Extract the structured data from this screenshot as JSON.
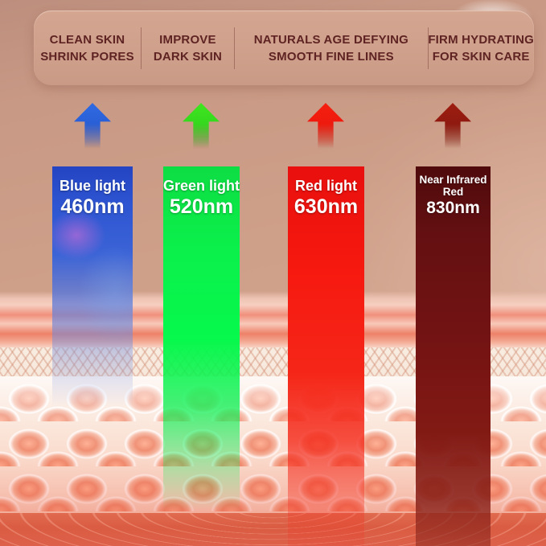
{
  "header": {
    "benefits": [
      {
        "line1": "CLEAN SKIN",
        "line2": "SHRINK PORES"
      },
      {
        "line1": "IMPROVE",
        "line2": "DARK SKIN"
      },
      {
        "line1": "NATURALS AGE DEFYING",
        "line2": "SMOOTH FINE LINES"
      },
      {
        "line1": "FIRM HYDRATING",
        "line2": "FOR SKIN CARE"
      }
    ]
  },
  "lights": [
    {
      "name": "Blue light",
      "name2": "",
      "wavelength": "460nm"
    },
    {
      "name": "Green light",
      "name2": "",
      "wavelength": "520nm"
    },
    {
      "name": "Red light",
      "name2": "",
      "wavelength": "630nm"
    },
    {
      "name": "Near Infrared",
      "name2": "Red",
      "wavelength": "830nm"
    }
  ],
  "palette": {
    "background": "#cf9f8a",
    "panel": "#d0a28d",
    "header_text": "#5e2322",
    "blue_light": "#2e55d2",
    "green_light": "#06f94c",
    "red_light": "#f2140e",
    "near_infrared_light": "#6d100f",
    "label_text": "#ffffff",
    "skin_cell": "#ee8a6e",
    "deep_layer": "#da5c42"
  }
}
